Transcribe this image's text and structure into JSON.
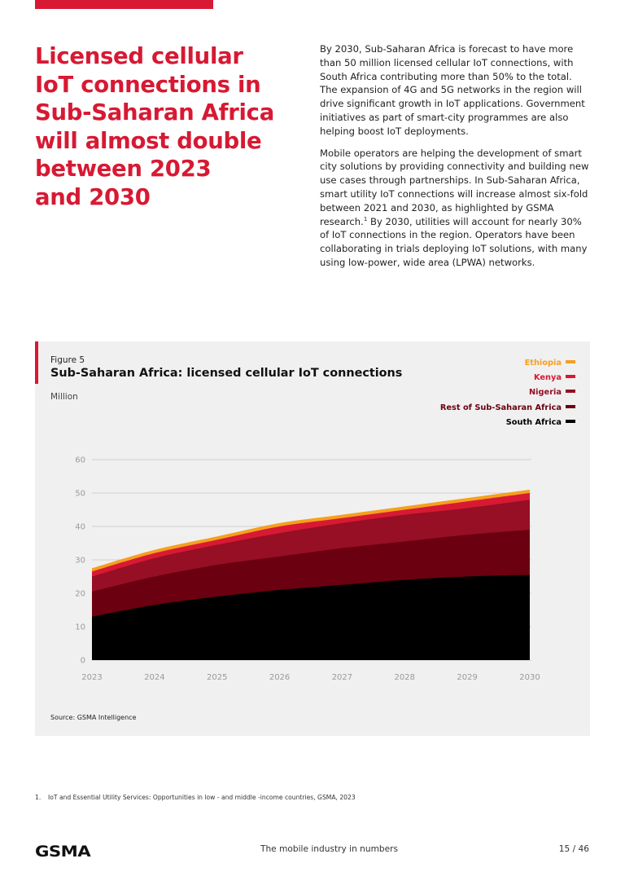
{
  "page": {
    "headline": "Licensed cellular IoT connections in Sub-Saharan Africa will almost double between 2023 and 2030",
    "headline_lines": [
      "Licensed cellular",
      "IoT connections in",
      "Sub-Saharan Africa",
      "will almost double",
      "between 2023",
      "and 2030"
    ],
    "accent_color": "#d71933",
    "paragraphs": [
      {
        "text": "By 2030, Sub-Saharan Africa is forecast to have more than 50 million licensed cellular IoT connections, with South Africa contributing more than 50% to the total. The expansion of 4G and 5G networks in the region will drive significant growth in IoT applications. Government initiatives as part of smart-city programmes are also helping boost IoT deployments."
      },
      {
        "text_before_ref": "Mobile operators are helping the development of smart city solutions by providing connectivity and building new use cases through partnerships. In Sub-Saharan Africa, smart utility IoT connections will increase almost six-fold between 2021 and 2030, as highlighted by GSMA research.",
        "ref": "1",
        "text_after_ref": " By 2030, utilities will account for nearly 30% of IoT connections in the region. Operators have been collaborating in trials deploying IoT solutions, with many using low-power, wide area (LPWA) networks."
      }
    ]
  },
  "figure": {
    "label": "Figure 5",
    "title": "Sub-Saharan Africa: licensed cellular IoT connections",
    "unit": "Million",
    "source": "Source: GSMA Intelligence"
  },
  "chart_data": {
    "type": "area",
    "stacked": true,
    "title": "Sub-Saharan Africa: licensed cellular IoT connections",
    "xlabel": "",
    "ylabel": "Million",
    "ylim": [
      0,
      60
    ],
    "yticks": [
      0,
      10,
      20,
      30,
      40,
      50,
      60
    ],
    "grid": true,
    "legend_position": "top-right",
    "categories": [
      "2023",
      "2024",
      "2025",
      "2026",
      "2027",
      "2028",
      "2029",
      "2030"
    ],
    "series": [
      {
        "name": "South Africa",
        "color": "#000000",
        "values": [
          13.0,
          16.5,
          19.0,
          21.0,
          22.5,
          24.0,
          25.0,
          25.5
        ]
      },
      {
        "name": "Rest of Sub-Saharan Africa",
        "color": "#6b0010",
        "values": [
          7.5,
          8.5,
          9.5,
          10.0,
          11.0,
          11.5,
          12.5,
          13.5
        ]
      },
      {
        "name": "Nigeria",
        "color": "#960f24",
        "values": [
          4.5,
          5.5,
          6.0,
          7.0,
          7.5,
          8.0,
          8.0,
          9.0
        ]
      },
      {
        "name": "Kenya",
        "color": "#d71933",
        "values": [
          1.5,
          1.5,
          1.5,
          2.0,
          1.5,
          1.5,
          2.0,
          2.0
        ]
      },
      {
        "name": "Ethiopia",
        "color": "#f5a01e",
        "values": [
          1.0,
          1.0,
          1.0,
          1.0,
          1.0,
          1.0,
          1.0,
          1.0
        ]
      }
    ],
    "legend_order": [
      "Ethiopia",
      "Kenya",
      "Nigeria",
      "Rest of Sub-Saharan Africa",
      "South Africa"
    ]
  },
  "footnote": {
    "number": "1.",
    "text": "IoT and Essential Utility Services: Opportunities in low - and middle -income countries, GSMA, 2023"
  },
  "footer": {
    "logo": "GSMA",
    "publication": "The mobile industry in numbers",
    "page": "15 / 46"
  }
}
